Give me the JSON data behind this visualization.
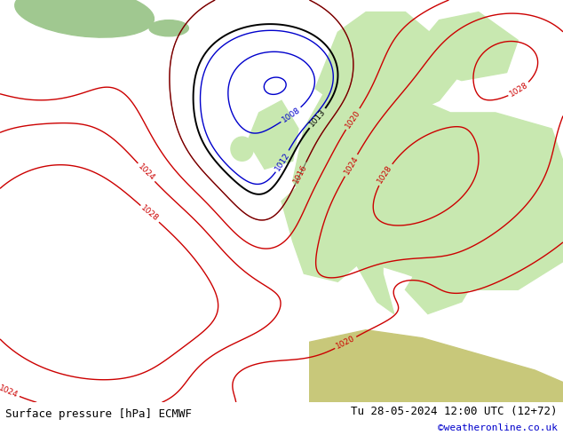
{
  "title_left": "Surface pressure [hPa] ECMWF",
  "title_right": "Tu 28-05-2024 12:00 UTC (12+72)",
  "watermark": "©weatheronline.co.uk",
  "ocean_color": "#e8eef2",
  "land_color": "#c8e8b0",
  "land_color2": "#b8d8a0",
  "footer_bg": "#d8d8d8",
  "contour_blue": "#0000cc",
  "contour_red": "#cc0000",
  "contour_black": "#000000",
  "figsize": [
    6.34,
    4.9
  ],
  "dpi": 100
}
